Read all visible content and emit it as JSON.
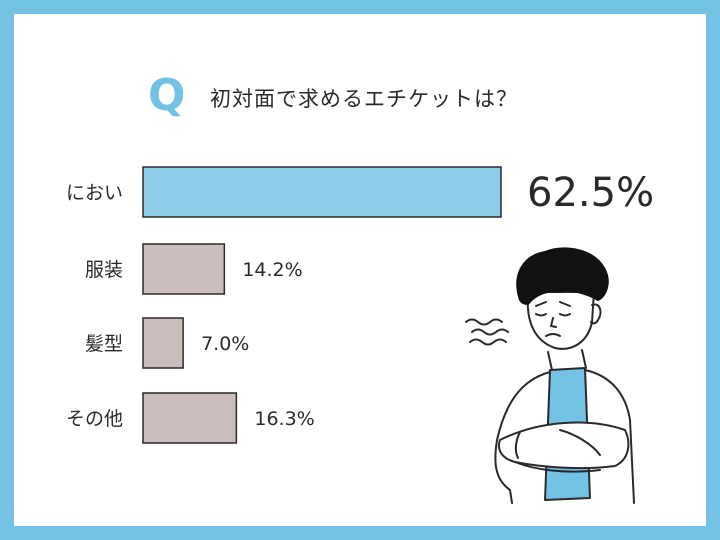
{
  "question": {
    "icon": "q-mark-icon",
    "mark": "Q",
    "text": "初対面で求めるエチケットは？"
  },
  "colors": {
    "frame": "#74c2e3",
    "highlight_bar": "#8ecde9",
    "other_bar": "#cbbdbb",
    "text": "#2a2a2a"
  },
  "chart_data": {
    "type": "bar",
    "orientation": "horizontal",
    "categories": [
      "におい",
      "服装",
      "髪型",
      "その他"
    ],
    "values": [
      62.5,
      14.2,
      7.0,
      16.3
    ],
    "value_labels": [
      "62.5%",
      "14.2%",
      "7.0%",
      "16.3%"
    ],
    "unit": "%",
    "highlight_index": 0,
    "xlim": [
      0,
      62.5
    ],
    "grid": false,
    "legend": "none"
  },
  "illustration": {
    "icon": "man-crossed-arms-smelling-icon"
  }
}
